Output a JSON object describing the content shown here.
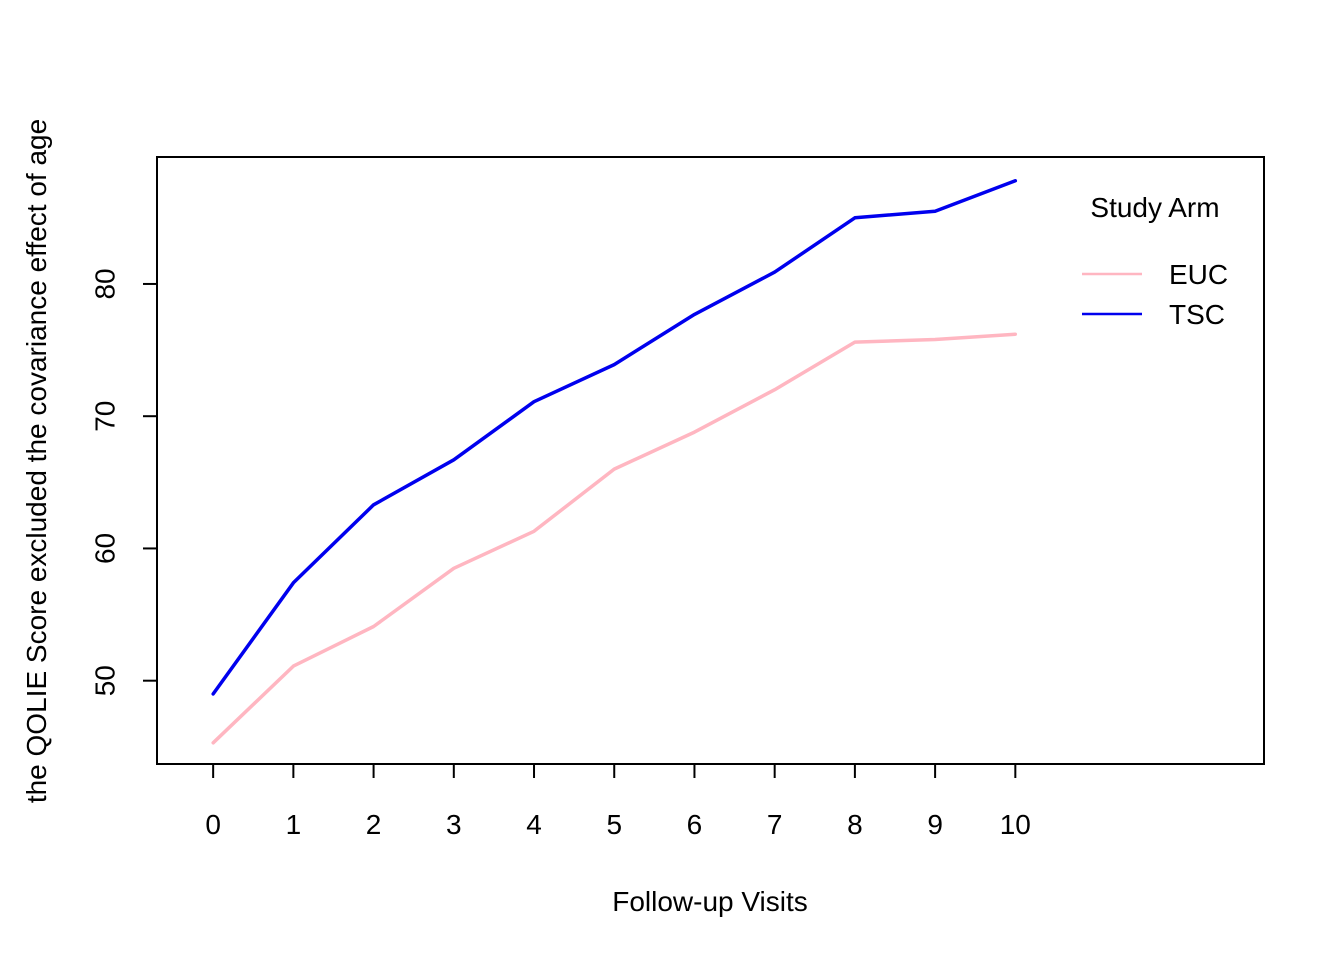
{
  "chart_data": {
    "type": "line",
    "title": "",
    "xlabel": "Follow-up Visits",
    "ylabel": "the QOLIE Score excluded the covariance effect of age",
    "x": [
      0,
      1,
      2,
      3,
      4,
      5,
      6,
      7,
      8,
      9,
      10
    ],
    "x_tick_labels": [
      "0",
      "1",
      "2",
      "3",
      "4",
      "5",
      "6",
      "7",
      "8",
      "9",
      "10"
    ],
    "xlim": [
      -0.7,
      13.1
    ],
    "ylim": [
      43.7,
      89.6
    ],
    "y_ticks": [
      50,
      60,
      70,
      80
    ],
    "y_tick_labels": [
      "50",
      "60",
      "70",
      "80"
    ],
    "grid": false,
    "legend": {
      "title": "Study Arm",
      "placement": "top-right"
    },
    "series": [
      {
        "name": "EUC",
        "color": "#FFB6C1",
        "values": [
          45.3,
          51.1,
          54.1,
          58.5,
          61.3,
          66.0,
          68.8,
          72.0,
          75.6,
          75.8,
          76.2
        ]
      },
      {
        "name": "TSC",
        "color": "#0000EE",
        "values": [
          49.0,
          57.4,
          63.3,
          66.7,
          71.1,
          73.9,
          77.7,
          80.9,
          85.0,
          85.5,
          87.8
        ]
      }
    ]
  }
}
